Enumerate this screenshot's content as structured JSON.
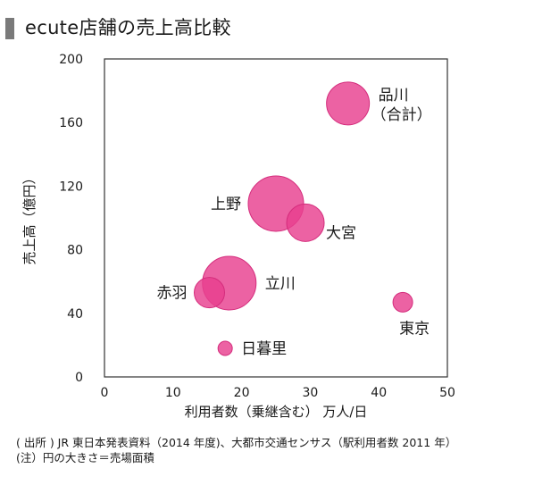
{
  "title": "ecute店舗の売上高比較",
  "footnotes": [
    "( 出所 ) JR 東日本発表資料（2014 年度)、大都市交通センサス（駅利用者数 2011 年）",
    "(注）円の大きさ＝売場面積"
  ],
  "chart_data": {
    "type": "scatter",
    "title": "ecute店舗の売上高比較",
    "xlabel": "利用者数（乗継含む） 万人/日",
    "ylabel": "売上高（億円）",
    "xlim": [
      0,
      50
    ],
    "ylim": [
      0,
      200
    ],
    "xticks": [
      0,
      10,
      20,
      30,
      40,
      50
    ],
    "yticks": [
      0,
      40,
      80,
      120,
      160,
      200
    ],
    "bubble_color": "#e8408f",
    "points": [
      {
        "label": "品川\n（合計）",
        "x": 35.5,
        "y": 172,
        "size": 24,
        "label_pos": "right"
      },
      {
        "label": "上野",
        "x": 25,
        "y": 109,
        "size": 31,
        "label_pos": "left"
      },
      {
        "label": "大宮",
        "x": 29.3,
        "y": 97,
        "size": 21,
        "label_pos": "right-below"
      },
      {
        "label": "立川",
        "x": 18.2,
        "y": 59,
        "size": 30,
        "label_pos": "right"
      },
      {
        "label": "赤羽",
        "x": 15.3,
        "y": 53,
        "size": 17,
        "label_pos": "left"
      },
      {
        "label": "東京",
        "x": 43.5,
        "y": 47,
        "size": 11,
        "label_pos": "below"
      },
      {
        "label": "日暮里",
        "x": 17.6,
        "y": 18,
        "size": 8,
        "label_pos": "right"
      }
    ]
  }
}
